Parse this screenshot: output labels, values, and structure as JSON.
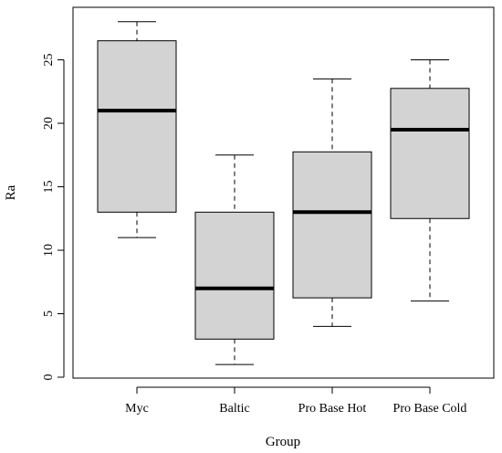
{
  "chart_data": {
    "type": "boxplot",
    "title": "",
    "xlabel": "Group",
    "ylabel": "Ra",
    "ylim": [
      0,
      28
    ],
    "yticks": [
      0,
      5,
      10,
      15,
      20,
      25
    ],
    "ytick_labels": [
      "0",
      "5",
      "10",
      "15",
      "20",
      "25"
    ],
    "categories": [
      "Myc",
      "Baltic",
      "Pro Base Hot",
      "Pro Base Cold"
    ],
    "boxes": [
      {
        "label": "Myc",
        "min": 11,
        "q1": 13,
        "median": 21,
        "q3": 26.5,
        "max": 28
      },
      {
        "label": "Baltic",
        "min": 1,
        "q1": 3,
        "median": 7,
        "q3": 13,
        "max": 17.5
      },
      {
        "label": "Pro Base Hot",
        "min": 4,
        "q1": 6.25,
        "median": 13,
        "q3": 17.75,
        "max": 23.5
      },
      {
        "label": "Pro Base Cold",
        "min": 6,
        "q1": 12.5,
        "median": 19.5,
        "q3": 22.75,
        "max": 25
      }
    ],
    "box_color": "#d3d3d3",
    "grid": false
  }
}
